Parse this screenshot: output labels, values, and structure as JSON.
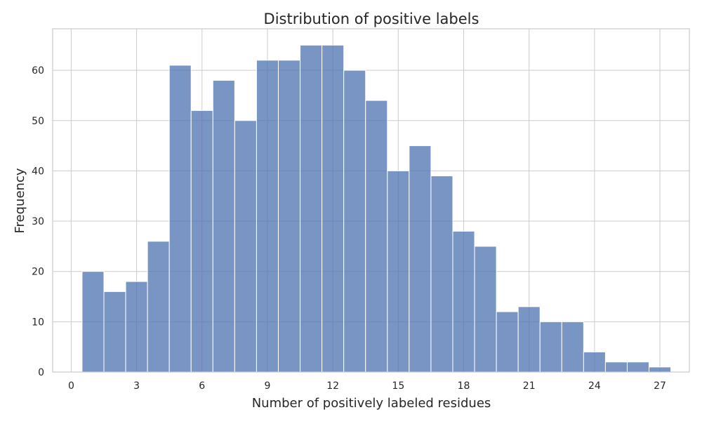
{
  "chart_data": {
    "type": "bar",
    "title": "Distribution of positive labels",
    "xlabel": "Number of positively labeled residues",
    "ylabel": "Frequency",
    "bin_width": 1,
    "bin_centers": [
      1,
      2,
      3,
      4,
      5,
      6,
      7,
      8,
      9,
      10,
      11,
      12,
      13,
      14,
      15,
      16,
      17,
      18,
      19,
      20,
      21,
      22,
      23,
      24,
      25,
      26,
      27
    ],
    "values": [
      20,
      16,
      18,
      26,
      61,
      52,
      58,
      50,
      62,
      62,
      65,
      65,
      60,
      54,
      40,
      45,
      39,
      28,
      25,
      12,
      13,
      10,
      10,
      4,
      2,
      2,
      1
    ],
    "xlim": [
      -0.85,
      28.35
    ],
    "ylim": [
      0,
      68.25
    ],
    "xticks": [
      0,
      3,
      6,
      9,
      12,
      15,
      18,
      21,
      24,
      27
    ],
    "yticks": [
      0,
      10,
      20,
      30,
      40,
      50,
      60
    ],
    "grid": true,
    "color": "#4c72b0"
  }
}
